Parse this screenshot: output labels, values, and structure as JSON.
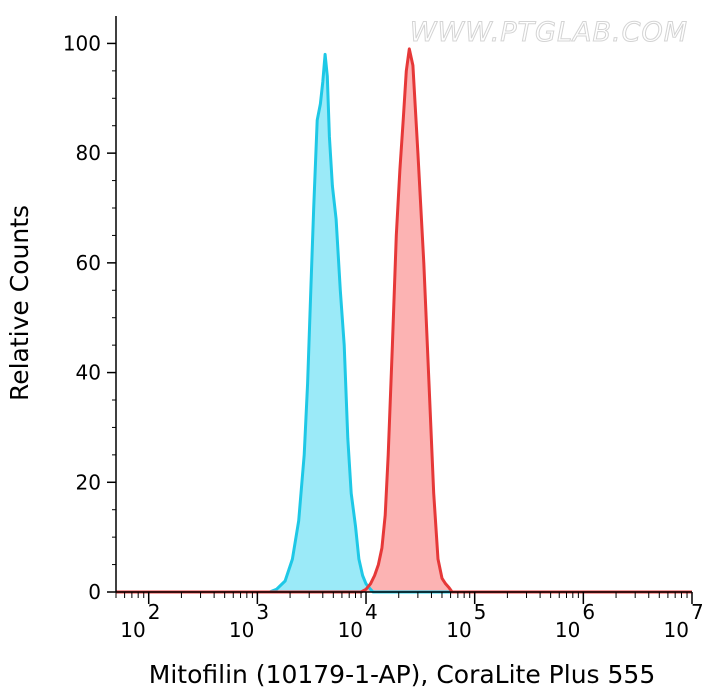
{
  "watermark": "WWW.PTGLAB.COM",
  "chart_data": {
    "type": "area",
    "title": "",
    "xlabel": "Mitofilin (10179-1-AP), CoraLite Plus 555",
    "ylabel": "Relative Counts",
    "xscale": "log",
    "xlim": [
      50,
      10000000
    ],
    "ylim": [
      0,
      105
    ],
    "x_ticks": [
      {
        "base": "10",
        "exp": "2"
      },
      {
        "base": "10",
        "exp": "3"
      },
      {
        "base": "10",
        "exp": "4"
      },
      {
        "base": "10",
        "exp": "5"
      },
      {
        "base": "10",
        "exp": "6"
      },
      {
        "base": "10",
        "exp": "7"
      }
    ],
    "y_ticks": [
      "0",
      "20",
      "40",
      "60",
      "80",
      "100"
    ],
    "grid": false,
    "legend": false,
    "series": [
      {
        "color": "#1ec8e6",
        "fill": "#9beaf8",
        "x": [
          1300,
          1500,
          1800,
          2100,
          2400,
          2700,
          2900,
          3100,
          3300,
          3550,
          3800,
          4000,
          4200,
          4400,
          4600,
          4900,
          5300,
          5800,
          6300,
          6800,
          7300,
          8000,
          8600,
          9300,
          10000,
          11000,
          11600
        ],
        "y": [
          0,
          0.5,
          2,
          6,
          13,
          25,
          38,
          55,
          70,
          86,
          89,
          93,
          98,
          94,
          83,
          74,
          68,
          55,
          45,
          28,
          18,
          12,
          6,
          3,
          1.5,
          0.5,
          0
        ]
      },
      {
        "color": "#e63838",
        "fill": "#fca9a9",
        "x": [
          9000,
          10000,
          11000,
          12000,
          13000,
          14000,
          15000,
          16000,
          17500,
          19000,
          20500,
          22000,
          23500,
          25000,
          27000,
          30000,
          34000,
          38000,
          42000,
          46000,
          50000,
          54000,
          58000,
          62000
        ],
        "y": [
          0,
          0.5,
          1.5,
          3,
          5,
          8,
          14,
          25,
          45,
          65,
          77,
          86,
          95,
          99,
          96,
          80,
          60,
          38,
          18,
          6,
          2.5,
          1.5,
          0.8,
          0
        ]
      }
    ]
  }
}
